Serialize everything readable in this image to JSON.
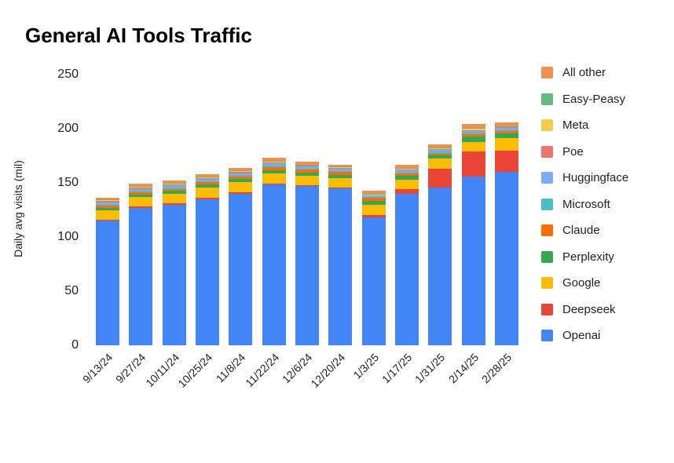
{
  "title": "General AI Tools Traffic",
  "y_axis": {
    "label": "Daily avg visits (mil)",
    "ticks": [
      0,
      50,
      100,
      150,
      200,
      250
    ]
  },
  "legend": [
    "All other",
    "Easy-Peasy",
    "Meta",
    "Poe",
    "Huggingface",
    "Microsoft",
    "Claude",
    "Perplexity",
    "Google",
    "Deepseek",
    "Openai"
  ],
  "chart_data": {
    "type": "bar",
    "stacked": true,
    "title": "General AI Tools Traffic",
    "xlabel": "",
    "ylabel": "Daily avg visits (mil)",
    "ylim": [
      0,
      250
    ],
    "yticks": [
      0,
      50,
      100,
      150,
      200,
      250
    ],
    "grid": false,
    "legend_position": "right",
    "categories": [
      "9/13/24",
      "9/27/24",
      "10/11/24",
      "10/25/24",
      "11/8/24",
      "11/22/24",
      "12/6/24",
      "12/20/24",
      "1/3/25",
      "1/17/25",
      "1/31/25",
      "2/14/25",
      "2/28/25"
    ],
    "series": [
      {
        "name": "Openai",
        "color": "#4285F4",
        "values": [
          115,
          127,
          130,
          135,
          140,
          149,
          147,
          145,
          118,
          140,
          146,
          156,
          160
        ]
      },
      {
        "name": "Deepseek",
        "color": "#E94436",
        "values": [
          1,
          1,
          1,
          1,
          1,
          0.5,
          0.5,
          0.5,
          2,
          4,
          17,
          23,
          20
        ]
      },
      {
        "name": "Google",
        "color": "#FBBC04",
        "values": [
          9,
          9,
          9,
          9.5,
          9.5,
          9,
          9,
          9,
          10,
          9,
          9.5,
          8.5,
          11
        ]
      },
      {
        "name": "Perplexity",
        "color": "#34A853",
        "values": [
          2,
          2.5,
          2.5,
          3,
          3,
          3,
          3,
          3,
          3,
          3.5,
          3,
          5,
          4.5
        ]
      },
      {
        "name": "Claude",
        "color": "#FF6D01",
        "values": [
          2,
          2,
          2,
          2,
          2.5,
          3,
          2.5,
          2.5,
          3,
          2,
          1,
          2.5,
          2
        ]
      },
      {
        "name": "Microsoft",
        "color": "#4BBFC6",
        "values": [
          1,
          1,
          1,
          1,
          1,
          1.5,
          1,
          1,
          1,
          1,
          2.5,
          1.5,
          1
        ]
      },
      {
        "name": "Huggingface",
        "color": "#7BAAF7",
        "values": [
          2,
          2,
          2,
          2,
          2,
          2,
          2,
          2,
          1.5,
          2.5,
          1.5,
          1.5,
          2.5
        ]
      },
      {
        "name": "Poe",
        "color": "#ED7470",
        "values": [
          1,
          1,
          1,
          1,
          1,
          1,
          1,
          1,
          0.5,
          0.5,
          0.5,
          0.5,
          0.5
        ]
      },
      {
        "name": "Meta",
        "color": "#F7CB4D",
        "values": [
          1,
          1,
          1,
          1,
          1,
          0.5,
          0.5,
          0.5,
          0.5,
          0.5,
          1,
          1.5,
          0.5
        ]
      },
      {
        "name": "Easy-Peasy",
        "color": "#63BA7C",
        "values": [
          0.5,
          0.5,
          0.5,
          0.5,
          0.5,
          0.5,
          0.5,
          0.5,
          0.5,
          0.5,
          0.5,
          0.5,
          0.5
        ]
      },
      {
        "name": "All other",
        "color": "#F2914D",
        "values": [
          2,
          2,
          2,
          2,
          2,
          3,
          2.5,
          2,
          2.5,
          3,
          3,
          3.5,
          3
        ]
      }
    ]
  }
}
